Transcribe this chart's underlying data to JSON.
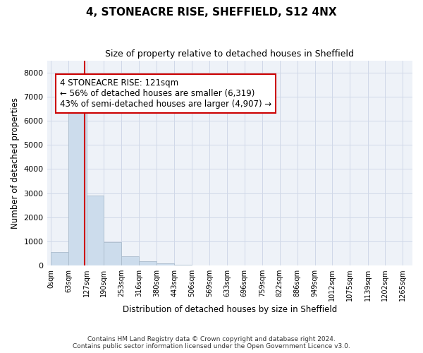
{
  "title": "4, STONEACRE RISE, SHEFFIELD, S12 4NX",
  "subtitle": "Size of property relative to detached houses in Sheffield",
  "xlabel": "Distribution of detached houses by size in Sheffield",
  "ylabel": "Number of detached properties",
  "property_size": 121,
  "annotation_line1": "4 STONEACRE RISE: 121sqm",
  "annotation_line2": "← 56% of detached houses are smaller (6,319)",
  "annotation_line3": "43% of semi-detached houses are larger (4,907) →",
  "bar_color": "#ccdcec",
  "bar_edge_color": "#aabccc",
  "redline_color": "#cc0000",
  "annotation_box_color": "#cc0000",
  "grid_color": "#d0d8e8",
  "background_color": "#eef2f8",
  "ylim": [
    0,
    8500
  ],
  "bin_edges": [
    0,
    63,
    127,
    190,
    253,
    316,
    380,
    443,
    506,
    569,
    633,
    696,
    759,
    822,
    886,
    949,
    1012,
    1075,
    1139,
    1202,
    1265
  ],
  "bar_heights": [
    550,
    6400,
    2900,
    970,
    390,
    165,
    90,
    40,
    0,
    0,
    0,
    0,
    0,
    0,
    0,
    0,
    0,
    0,
    0,
    0
  ],
  "footer_line1": "Contains HM Land Registry data © Crown copyright and database right 2024.",
  "footer_line2": "Contains public sector information licensed under the Open Government Licence v3.0."
}
